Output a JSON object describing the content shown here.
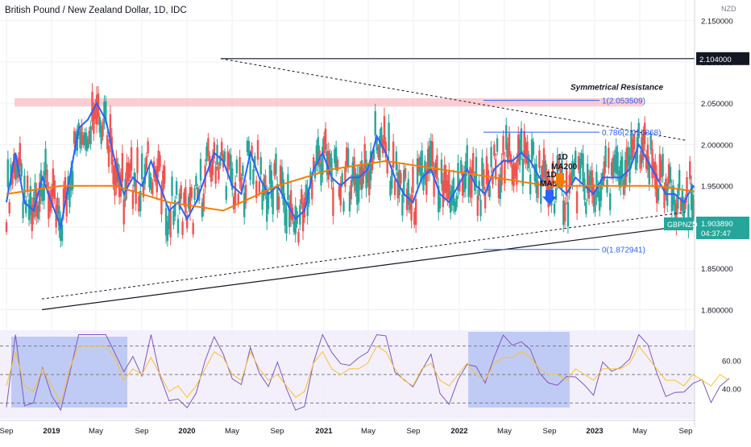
{
  "chart_data": {
    "type": "line",
    "title": "British Pound / New Zealand Dollar, 1D, IDC",
    "currency": "NZD",
    "symbol": "GBPNZD",
    "last_price": "1.903890",
    "countdown": "04:37:47",
    "ylim": [
      1.78,
      2.175
    ],
    "y_ticks": [
      "2.150000",
      "2.100000",
      "2.050000",
      "2.000000",
      "1.950000",
      "1.900000",
      "1.850000",
      "1.800000"
    ],
    "x_ticks": [
      "Sep",
      "2019",
      "May",
      "Sep",
      "2020",
      "May",
      "Sep",
      "2021",
      "May",
      "Sep",
      "2022",
      "May",
      "Sep",
      "2023",
      "May",
      "Sep"
    ],
    "x_range": [
      "2018-09",
      "2023-09"
    ],
    "resistance_label": "2.104000",
    "annotation": "Symmetrical Resistance",
    "fib_levels": [
      {
        "ratio": 1,
        "value": 2.053509,
        "label": "1(2.053509)"
      },
      {
        "ratio": 0.786,
        "value": 2.014868,
        "label": "0.786(2.014868)"
      },
      {
        "ratio": 0,
        "value": 1.872941,
        "label": "0(1.872941)"
      }
    ],
    "ma200_label": [
      "1D",
      "MA200"
    ],
    "ma50_label": [
      "1D",
      "MA50"
    ],
    "series": [
      {
        "name": "MA50",
        "color": "#2962ff",
        "points": [
          [
            0,
            1.93
          ],
          [
            0.05,
            1.99
          ],
          [
            0.1,
            1.93
          ],
          [
            0.15,
            1.92
          ],
          [
            0.2,
            1.96
          ],
          [
            0.25,
            1.93
          ],
          [
            0.3,
            1.9
          ],
          [
            0.35,
            1.96
          ],
          [
            0.4,
            2.02
          ],
          [
            0.45,
            2.03
          ],
          [
            0.5,
            2.05
          ],
          [
            0.55,
            2.03
          ],
          [
            0.6,
            1.98
          ],
          [
            0.65,
            1.94
          ],
          [
            0.7,
            1.96
          ],
          [
            0.75,
            1.95
          ],
          [
            0.8,
            1.98
          ],
          [
            0.85,
            1.95
          ],
          [
            0.9,
            1.92
          ],
          [
            0.95,
            1.93
          ],
          [
            1.0,
            1.91
          ],
          [
            1.05,
            1.93
          ],
          [
            1.1,
            1.96
          ],
          [
            1.15,
            1.99
          ],
          [
            1.2,
            1.98
          ],
          [
            1.25,
            1.95
          ],
          [
            1.3,
            1.94
          ],
          [
            1.35,
            1.99
          ],
          [
            1.4,
            1.96
          ],
          [
            1.45,
            1.94
          ],
          [
            1.5,
            1.95
          ],
          [
            1.55,
            1.93
          ],
          [
            1.6,
            1.91
          ],
          [
            1.65,
            1.92
          ],
          [
            1.7,
            1.97
          ],
          [
            1.75,
            1.99
          ],
          [
            1.8,
            1.96
          ],
          [
            1.85,
            1.95
          ],
          [
            1.9,
            1.96
          ],
          [
            1.95,
            1.96
          ],
          [
            2.0,
            1.97
          ],
          [
            2.05,
            2.01
          ],
          [
            2.1,
            1.99
          ],
          [
            2.15,
            1.96
          ],
          [
            2.2,
            1.94
          ],
          [
            2.25,
            1.93
          ],
          [
            2.3,
            1.96
          ],
          [
            2.35,
            1.97
          ],
          [
            2.4,
            1.94
          ],
          [
            2.45,
            1.93
          ],
          [
            2.5,
            1.95
          ],
          [
            2.55,
            1.97
          ],
          [
            2.6,
            1.95
          ],
          [
            2.65,
            1.94
          ],
          [
            2.7,
            1.97
          ],
          [
            2.75,
            1.98
          ],
          [
            2.8,
            1.98
          ],
          [
            2.85,
            1.99
          ],
          [
            2.9,
            1.98
          ],
          [
            2.95,
            1.96
          ],
          [
            3.0,
            1.95
          ],
          [
            3.05,
            1.95
          ],
          [
            3.1,
            1.94
          ],
          [
            3.15,
            1.96
          ],
          [
            3.2,
            1.95
          ],
          [
            3.25,
            1.94
          ],
          [
            3.3,
            1.96
          ],
          [
            3.35,
            1.96
          ],
          [
            3.4,
            1.96
          ],
          [
            3.45,
            1.97
          ],
          [
            3.5,
            2.0
          ],
          [
            3.55,
            1.98
          ],
          [
            3.6,
            1.96
          ],
          [
            3.65,
            1.94
          ],
          [
            3.7,
            1.94
          ],
          [
            3.75,
            1.93
          ],
          [
            3.8,
            1.95
          ],
          [
            3.85,
            1.94
          ],
          [
            3.9,
            1.93
          ],
          [
            3.95,
            1.95
          ],
          [
            4.0,
            1.94
          ]
        ]
      },
      {
        "name": "MA200",
        "color": "#f57c00",
        "points": [
          [
            0,
            1.94
          ],
          [
            0.3,
            1.95
          ],
          [
            0.6,
            1.95
          ],
          [
            0.9,
            1.93
          ],
          [
            1.2,
            1.92
          ],
          [
            1.5,
            1.95
          ],
          [
            1.8,
            1.97
          ],
          [
            2.1,
            1.98
          ],
          [
            2.4,
            1.97
          ],
          [
            2.7,
            1.96
          ],
          [
            3.0,
            1.95
          ],
          [
            3.3,
            1.95
          ],
          [
            3.6,
            1.95
          ],
          [
            3.9,
            1.94
          ]
        ]
      }
    ]
  },
  "rsi": {
    "levels": [
      "60.00",
      "40.00"
    ],
    "ylim": [
      20,
      80
    ]
  }
}
